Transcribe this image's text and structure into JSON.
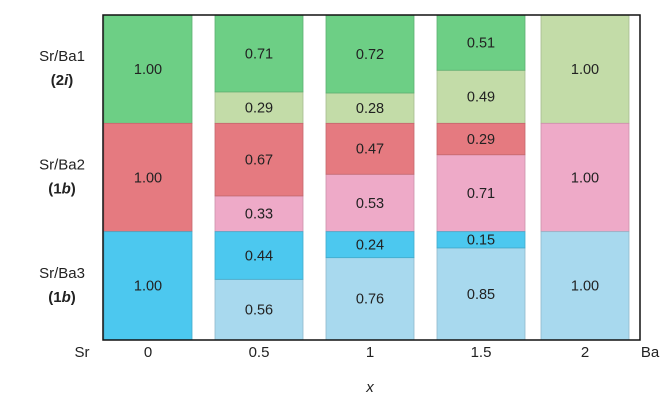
{
  "chart_data": {
    "type": "stacked-bar",
    "categories": [
      "0",
      "0.5",
      "1",
      "1.5",
      "2"
    ],
    "x_label": "x",
    "left_label": "Sr",
    "right_label": "Ba",
    "rows": [
      {
        "label": "Sr/Ba1",
        "site": "(2i)",
        "series": [
          {
            "color": "#6dcf85",
            "values": [
              1,
              0.71,
              0.72,
              0.51,
              0
            ],
            "value_labels": [
              "1.00",
              "0.71",
              "0.72",
              "0.51",
              null
            ]
          },
          {
            "color": "#c3dca8",
            "values": [
              0,
              0.29,
              0.28,
              0.49,
              1
            ],
            "value_labels": [
              null,
              "0.29",
              "0.28",
              "0.49",
              "1.00"
            ]
          }
        ]
      },
      {
        "label": "Sr/Ba2",
        "site": "(1b)",
        "series": [
          {
            "color": "#e57a80",
            "values": [
              1,
              0.67,
              0.47,
              0.29,
              0
            ],
            "value_labels": [
              "1.00",
              "0.67",
              "0.47",
              "0.29",
              null
            ]
          },
          {
            "color": "#eeaac8",
            "values": [
              0,
              0.33,
              0.53,
              0.71,
              1
            ],
            "value_labels": [
              null,
              "0.33",
              "0.53",
              "0.71",
              "1.00"
            ]
          }
        ]
      },
      {
        "label": "Sr/Ba3",
        "site": "(1b)",
        "series": [
          {
            "color": "#4cc8ef",
            "values": [
              1,
              0.44,
              0.24,
              0.15,
              0
            ],
            "value_labels": [
              "1.00",
              "0.44",
              "0.24",
              "0.15",
              null
            ]
          },
          {
            "color": "#a8d9ee",
            "values": [
              0,
              0.56,
              0.76,
              0.85,
              1
            ],
            "value_labels": [
              null,
              "0.56",
              "0.76",
              "0.85",
              "1.00"
            ]
          }
        ]
      }
    ]
  }
}
